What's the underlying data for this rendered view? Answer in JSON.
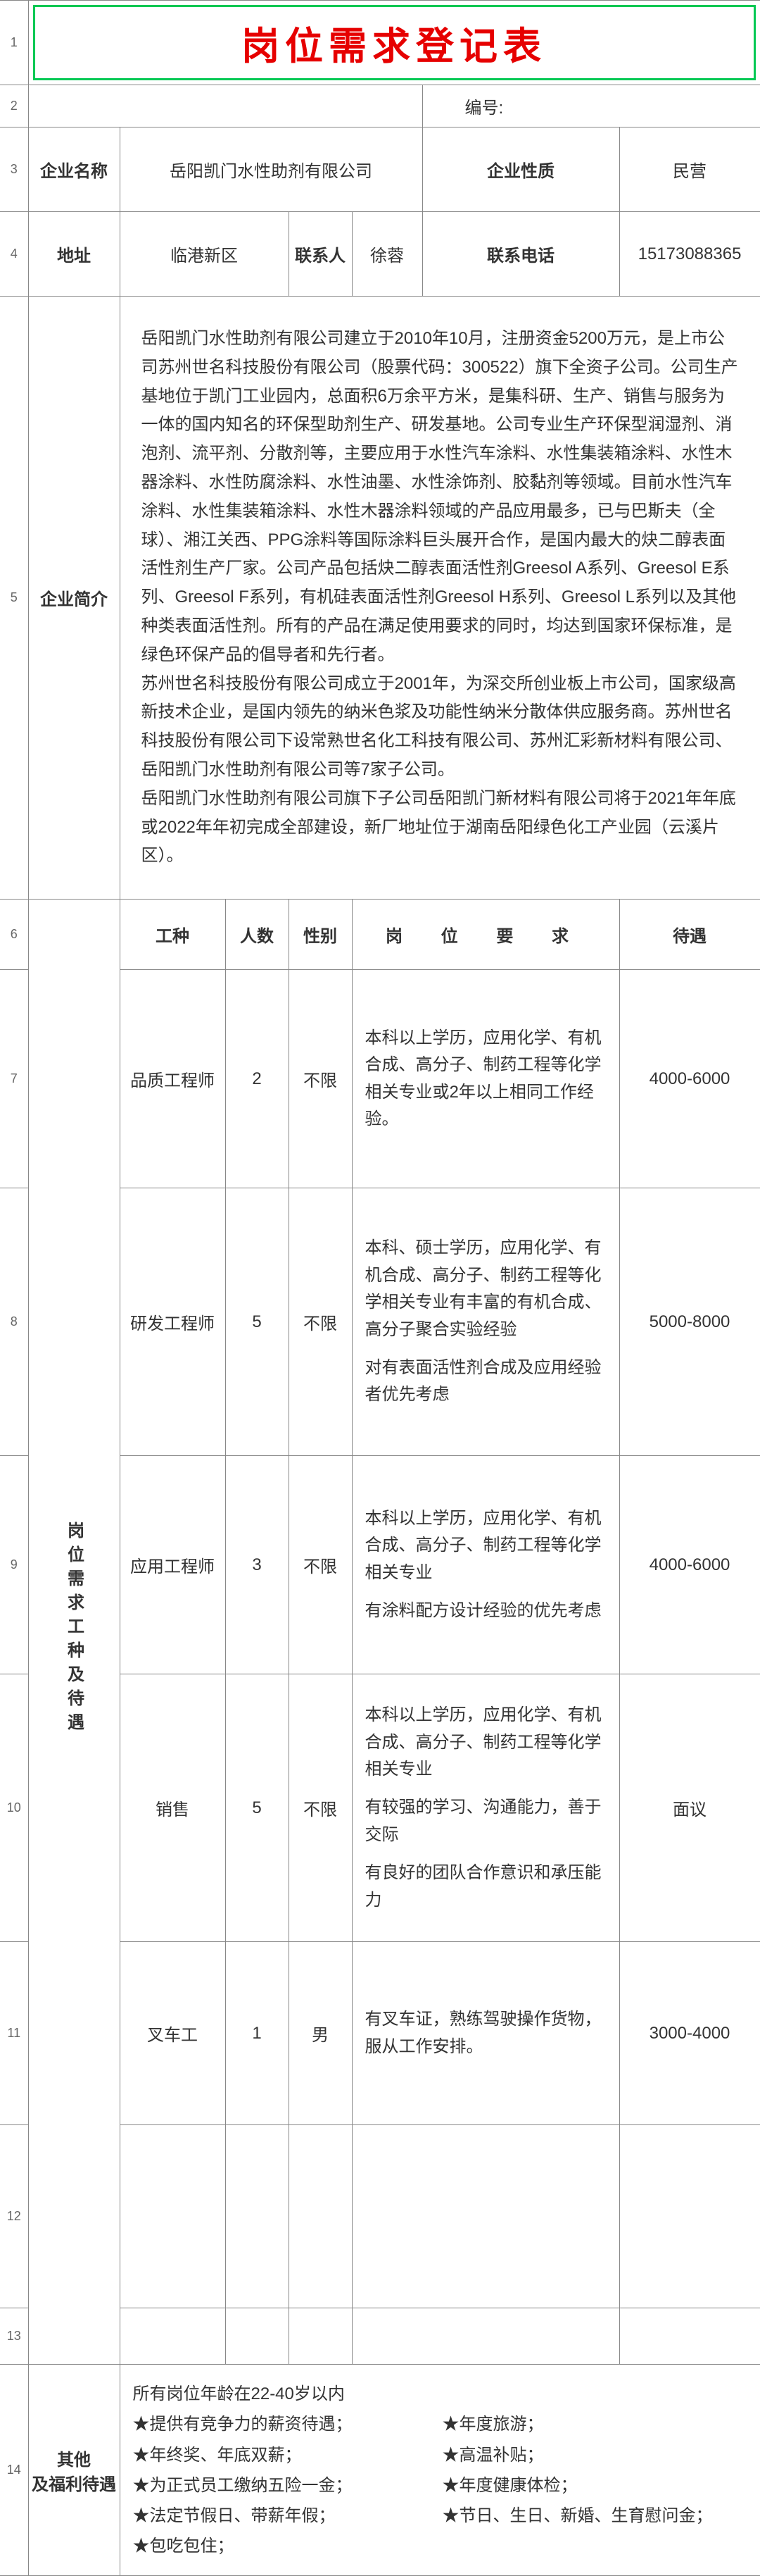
{
  "title": "岗位需求登记表",
  "numberLabel": "编号:",
  "row3": {
    "companyNameLabel": "企业名称",
    "companyName": "岳阳凯门水性助剂有限公司",
    "natureLabel": "企业性质",
    "nature": "民营"
  },
  "row4": {
    "addressLabel": "地址",
    "address": "临港新区",
    "contactLabel": "联系人",
    "contact": "徐蓉",
    "phoneLabel": "联系电话",
    "phone": "15173088365"
  },
  "introLabel": "企业简介",
  "intro": "岳阳凯门水性助剂有限公司建立于2010年10月，注册资金5200万元，是上市公司苏州世名科技股份有限公司（股票代码：300522）旗下全资子公司。公司生产基地位于凯门工业园内，总面积6万余平方米，是集科研、生产、销售与服务为一体的国内知名的环保型助剂生产、研发基地。公司专业生产环保型润湿剂、消泡剂、流平剂、分散剂等，主要应用于水性汽车涂料、水性集装箱涂料、水性木器涂料、水性防腐涂料、水性油墨、水性涂饰剂、胶黏剂等领域。目前水性汽车涂料、水性集装箱涂料、水性木器涂料领域的产品应用最多，已与巴斯夫（全球）、湘江关西、PPG涂料等国际涂料巨头展开合作，是国内最大的炔二醇表面活性剂生产厂家。公司产品包括炔二醇表面活性剂Greesol A系列、Greesol E系列、Greesol F系列，有机硅表面活性剂Greesol H系列、Greesol L系列以及其他种类表面活性剂。所有的产品在满足使用要求的同时，均达到国家环保标准，是绿色环保产品的倡导者和先行者。\n苏州世名科技股份有限公司成立于2001年，为深交所创业板上市公司，国家级高新技术企业，是国内领先的纳米色浆及功能性纳米分散体供应服务商。苏州世名科技股份有限公司下设常熟世名化工科技有限公司、苏州汇彩新材料有限公司、岳阳凯门水性助剂有限公司等7家子公司。\n岳阳凯门水性助剂有限公司旗下子公司岳阳凯门新材料有限公司将于2021年年底或2022年年初完成全部建设，新厂地址位于湖南岳阳绿色化工产业园（云溪片区）。",
  "header": {
    "type": "工种",
    "count": "人数",
    "gender": "性别",
    "req": "岗 位 要 求",
    "salary": "待遇"
  },
  "sideLabel": "岗位需求工种及待遇",
  "jobs": [
    {
      "type": "品质工程师",
      "count": "2",
      "gender": "不限",
      "req": [
        "本科以上学历，应用化学、有机合成、高分子、制药工程等化学相关专业或2年以上相同工作经验。"
      ],
      "salary": "4000-6000"
    },
    {
      "type": "研发工程师",
      "count": "5",
      "gender": "不限",
      "req": [
        "本科、硕士学历，应用化学、有机合成、高分子、制药工程等化学相关专业有丰富的有机合成、高分子聚合实验经验",
        "对有表面活性剂合成及应用经验者优先考虑"
      ],
      "salary": "5000-8000"
    },
    {
      "type": "应用工程师",
      "count": "3",
      "gender": "不限",
      "req": [
        "本科以上学历，应用化学、有机合成、高分子、制药工程等化学相关专业",
        "有涂料配方设计经验的优先考虑"
      ],
      "salary": "4000-6000"
    },
    {
      "type": "销售",
      "count": "5",
      "gender": "不限",
      "req": [
        "本科以上学历，应用化学、有机合成、高分子、制药工程等化学相关专业",
        "有较强的学习、沟通能力，善于交际",
        "有良好的团队合作意识和承压能力"
      ],
      "salary": "面议"
    },
    {
      "type": "叉车工",
      "count": "1",
      "gender": "男",
      "req": [
        "有叉车证，熟练驾驶操作货物，服从工作安排。"
      ],
      "salary": "3000-4000"
    }
  ],
  "benefitsLabel": "其他\n及福利待遇",
  "benefits": {
    "line0": "所有岗位年龄在22-40岁以内",
    "left": [
      "★提供有竞争力的薪资待遇；",
      "★年终奖、年底双薪；",
      "★为正式员工缴纳五险一金；",
      "★法定节假日、带薪年假；",
      "★包吃包住；"
    ],
    "right": [
      "★年度旅游；",
      "★高温补贴；",
      "★年度健康体检；",
      "★节日、生日、新婚、生育慰问金；"
    ]
  },
  "rowNums": [
    "1",
    "2",
    "3",
    "4",
    "5",
    "6",
    "7",
    "8",
    "9",
    "10",
    "11",
    "12",
    "13",
    "14"
  ]
}
